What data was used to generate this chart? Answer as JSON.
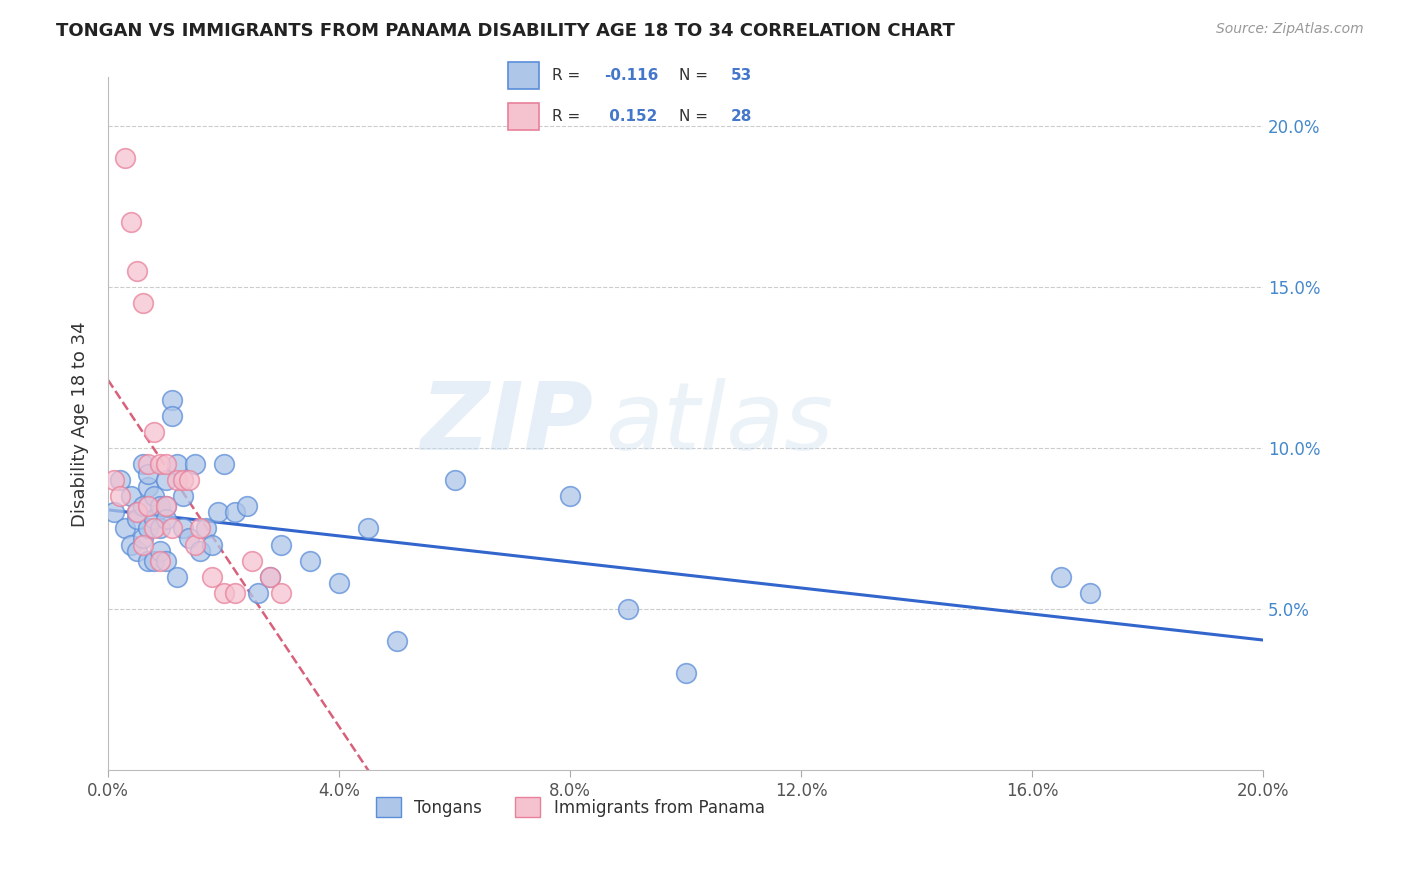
{
  "title": "TONGAN VS IMMIGRANTS FROM PANAMA DISABILITY AGE 18 TO 34 CORRELATION CHART",
  "source": "Source: ZipAtlas.com",
  "ylabel": "Disability Age 18 to 34",
  "watermark_zip": "ZIP",
  "watermark_atlas": "atlas",
  "legend1_r": "-0.116",
  "legend1_n": "53",
  "legend2_r": "0.152",
  "legend2_n": "28",
  "xlim": [
    0.0,
    0.2
  ],
  "ylim": [
    0.0,
    0.215
  ],
  "yticks": [
    0.05,
    0.1,
    0.15,
    0.2
  ],
  "xticks": [
    0.0,
    0.04,
    0.08,
    0.12,
    0.16,
    0.2
  ],
  "blue_color": "#aec6e8",
  "blue_edge_color": "#5b8dd9",
  "blue_line_color": "#3366cc",
  "pink_color": "#f5c2d0",
  "pink_edge_color": "#e8809a",
  "pink_line_color": "#d9607a",
  "tongans_x": [
    0.001,
    0.002,
    0.003,
    0.004,
    0.004,
    0.005,
    0.005,
    0.005,
    0.006,
    0.006,
    0.006,
    0.007,
    0.007,
    0.007,
    0.007,
    0.008,
    0.008,
    0.008,
    0.009,
    0.009,
    0.009,
    0.01,
    0.01,
    0.01,
    0.01,
    0.011,
    0.011,
    0.012,
    0.012,
    0.013,
    0.013,
    0.014,
    0.015,
    0.016,
    0.017,
    0.018,
    0.019,
    0.02,
    0.022,
    0.024,
    0.026,
    0.028,
    0.03,
    0.035,
    0.04,
    0.045,
    0.05,
    0.06,
    0.08,
    0.09,
    0.1,
    0.165,
    0.17
  ],
  "tongans_y": [
    0.08,
    0.09,
    0.075,
    0.085,
    0.07,
    0.08,
    0.078,
    0.068,
    0.095,
    0.082,
    0.072,
    0.088,
    0.075,
    0.065,
    0.092,
    0.085,
    0.078,
    0.065,
    0.082,
    0.075,
    0.068,
    0.09,
    0.082,
    0.078,
    0.065,
    0.115,
    0.11,
    0.095,
    0.06,
    0.085,
    0.075,
    0.072,
    0.095,
    0.068,
    0.075,
    0.07,
    0.08,
    0.095,
    0.08,
    0.082,
    0.055,
    0.06,
    0.07,
    0.065,
    0.058,
    0.075,
    0.04,
    0.09,
    0.085,
    0.05,
    0.03,
    0.06,
    0.055
  ],
  "panama_x": [
    0.001,
    0.002,
    0.003,
    0.004,
    0.005,
    0.005,
    0.006,
    0.006,
    0.007,
    0.007,
    0.008,
    0.008,
    0.009,
    0.009,
    0.01,
    0.01,
    0.011,
    0.012,
    0.013,
    0.014,
    0.015,
    0.016,
    0.018,
    0.02,
    0.022,
    0.025,
    0.028,
    0.03
  ],
  "panama_y": [
    0.09,
    0.085,
    0.19,
    0.17,
    0.155,
    0.08,
    0.145,
    0.07,
    0.095,
    0.082,
    0.105,
    0.075,
    0.095,
    0.065,
    0.095,
    0.082,
    0.075,
    0.09,
    0.09,
    0.09,
    0.07,
    0.075,
    0.06,
    0.055,
    0.055,
    0.065,
    0.06,
    0.055
  ],
  "background_color": "#ffffff",
  "grid_color": "#cccccc"
}
